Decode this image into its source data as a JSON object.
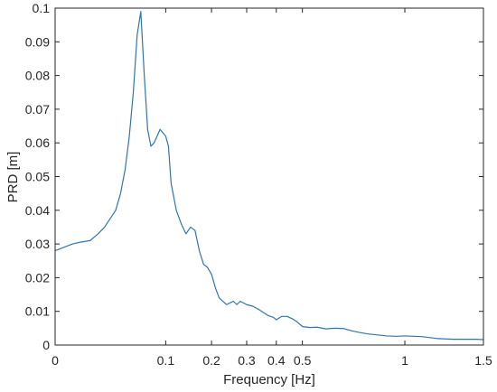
{
  "chart_data": {
    "type": "line",
    "title": "",
    "xlabel": "Frequency [Hz]",
    "ylabel": "PRD [m]",
    "xscale": "sqrt",
    "xlim": [
      0,
      1.5
    ],
    "ylim": [
      0,
      0.1
    ],
    "xticks": [
      0,
      0.1,
      0.2,
      0.3,
      0.4,
      0.5,
      1,
      1.5
    ],
    "xtick_labels": [
      "0",
      "0.1",
      "0.2",
      "0.3",
      "0.4",
      "0.5",
      "1",
      "1.5"
    ],
    "yticks": [
      0,
      0.01,
      0.02,
      0.03,
      0.04,
      0.05,
      0.06,
      0.07,
      0.08,
      0.09,
      0.1
    ],
    "ytick_labels": [
      "0",
      "0.01",
      "0.02",
      "0.03",
      "0.04",
      "0.05",
      "0.06",
      "0.07",
      "0.08",
      "0.09",
      "0.1"
    ],
    "grid": false,
    "box": true,
    "line_color": "#2e75b6",
    "series": [
      {
        "name": "",
        "x": [
          0,
          0.0025,
          0.005,
          0.01,
          0.015,
          0.02,
          0.03,
          0.035,
          0.04,
          0.045,
          0.05,
          0.055,
          0.06,
          0.065,
          0.07,
          0.075,
          0.08,
          0.085,
          0.09,
          0.095,
          0.1,
          0.105,
          0.11,
          0.115,
          0.12,
          0.13,
          0.14,
          0.15,
          0.16,
          0.17,
          0.18,
          0.19,
          0.2,
          0.21,
          0.22,
          0.24,
          0.26,
          0.27,
          0.28,
          0.3,
          0.32,
          0.34,
          0.37,
          0.39,
          0.4,
          0.42,
          0.44,
          0.46,
          0.48,
          0.5,
          0.53,
          0.56,
          0.6,
          0.64,
          0.68,
          0.72,
          0.76,
          0.8,
          0.85,
          0.9,
          0.95,
          1.0,
          1.05,
          1.1,
          1.15,
          1.2,
          1.3,
          1.4,
          1.45,
          1.5
        ],
        "y": [
          0.028,
          0.03,
          0.0305,
          0.031,
          0.033,
          0.035,
          0.04,
          0.045,
          0.052,
          0.062,
          0.075,
          0.092,
          0.099,
          0.08,
          0.064,
          0.059,
          0.06,
          0.062,
          0.064,
          0.063,
          0.062,
          0.059,
          0.048,
          0.044,
          0.04,
          0.036,
          0.033,
          0.035,
          0.034,
          0.028,
          0.024,
          0.023,
          0.021,
          0.017,
          0.014,
          0.012,
          0.013,
          0.012,
          0.013,
          0.012,
          0.0115,
          0.0105,
          0.0088,
          0.0082,
          0.0075,
          0.0085,
          0.0085,
          0.0078,
          0.0068,
          0.0055,
          0.0052,
          0.0053,
          0.0048,
          0.005,
          0.0049,
          0.0042,
          0.0037,
          0.0033,
          0.003,
          0.0027,
          0.0026,
          0.0027,
          0.0026,
          0.0025,
          0.0022,
          0.0019,
          0.0017,
          0.0017,
          0.0017,
          0.0016
        ]
      }
    ]
  }
}
